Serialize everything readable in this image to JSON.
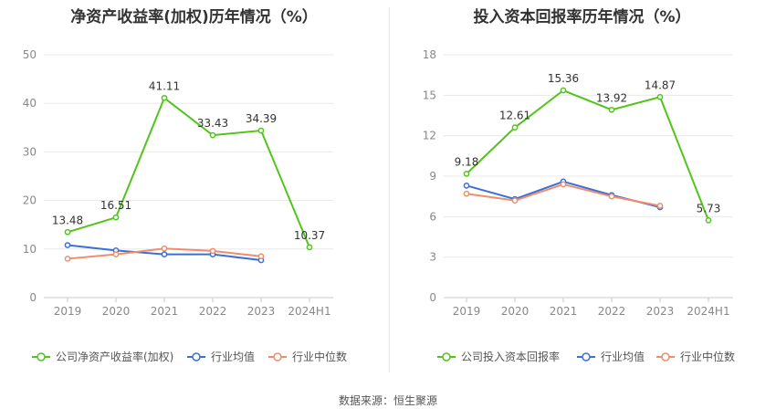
{
  "chart_data": [
    {
      "type": "line",
      "title": "净资产收益率(加权)历年情况（%）",
      "categories": [
        "2019",
        "2020",
        "2021",
        "2022",
        "2023",
        "2024H1"
      ],
      "ylim": [
        0,
        50
      ],
      "yticks": [
        0,
        10,
        20,
        30,
        40,
        50
      ],
      "grid": true,
      "legend_position": "bottom",
      "series": [
        {
          "name": "公司净资产收益率(加权)",
          "color": "#52c41a",
          "values": [
            13.48,
            16.51,
            41.11,
            33.43,
            34.39,
            10.37
          ],
          "labeled": true
        },
        {
          "name": "行业均值",
          "color": "#3a6fd8",
          "values": [
            10.8,
            9.7,
            8.9,
            8.9,
            7.7,
            null
          ],
          "labeled": false
        },
        {
          "name": "行业中位数",
          "color": "#f08c6a",
          "values": [
            8.0,
            8.9,
            10.1,
            9.6,
            8.5,
            null
          ],
          "labeled": false
        }
      ]
    },
    {
      "type": "line",
      "title": "投入资本回报率历年情况（%）",
      "categories": [
        "2019",
        "2020",
        "2021",
        "2022",
        "2023",
        "2024H1"
      ],
      "ylim": [
        0,
        18
      ],
      "yticks": [
        0,
        3,
        6,
        9,
        12,
        15,
        18
      ],
      "grid": true,
      "legend_position": "bottom",
      "series": [
        {
          "name": "公司投入资本回报率",
          "color": "#52c41a",
          "values": [
            9.18,
            12.61,
            15.36,
            13.92,
            14.87,
            5.73
          ],
          "labeled": true
        },
        {
          "name": "行业均值",
          "color": "#3a6fd8",
          "values": [
            8.3,
            7.3,
            8.6,
            7.6,
            6.7,
            null
          ],
          "labeled": false
        },
        {
          "name": "行业中位数",
          "color": "#f08c6a",
          "values": [
            7.7,
            7.2,
            8.4,
            7.5,
            6.8,
            null
          ],
          "labeled": false
        }
      ]
    }
  ],
  "footer": {
    "source": "数据来源：恒生聚源"
  }
}
